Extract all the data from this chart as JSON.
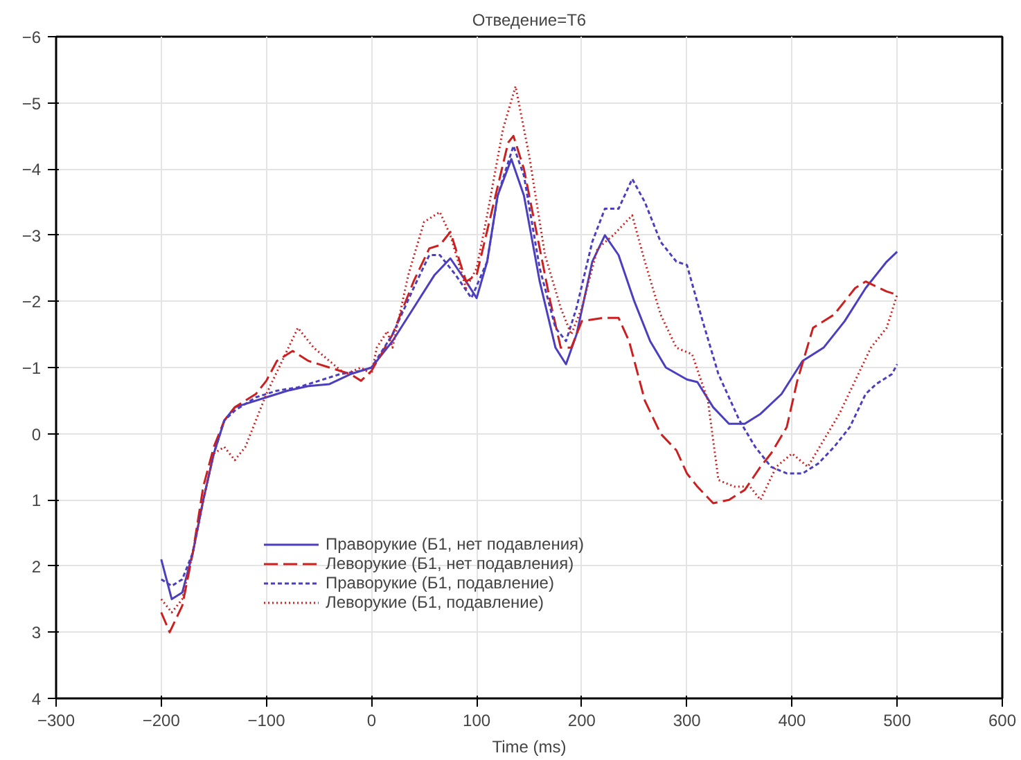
{
  "chart_data": {
    "type": "line",
    "title": "Отведение=T6",
    "xlabel": "Time (ms)",
    "xlim": [
      -300,
      600
    ],
    "xticks": [
      -300,
      -200,
      -100,
      0,
      100,
      200,
      300,
      400,
      500,
      600
    ],
    "ylim": [
      4,
      -6
    ],
    "yticks": [
      -6,
      -5,
      -4,
      -3,
      -2,
      -1,
      0,
      1,
      2,
      3,
      4
    ],
    "grid": true,
    "legend": "bottom left",
    "marker": "none",
    "series": [
      {
        "name": "Праворукие (Б1, нет подавления)",
        "color": "#4b3fbf",
        "line_style": "solid",
        "x": [
          -200,
          -190,
          -180,
          -170,
          -160,
          -150,
          -140,
          -130,
          -120,
          -100,
          -80,
          -60,
          -40,
          -20,
          0,
          20,
          40,
          60,
          75,
          90,
          100,
          110,
          120,
          133,
          145,
          160,
          175,
          185,
          195,
          210,
          222,
          235,
          250,
          265,
          280,
          300,
          310,
          325,
          340,
          355,
          370,
          390,
          410,
          430,
          450,
          470,
          490,
          500
        ],
        "values": [
          1.9,
          2.5,
          2.4,
          1.8,
          1.0,
          0.3,
          -0.2,
          -0.4,
          -0.45,
          -0.55,
          -0.65,
          -0.72,
          -0.75,
          -0.9,
          -1.0,
          -1.4,
          -1.9,
          -2.4,
          -2.65,
          -2.3,
          -2.05,
          -2.6,
          -3.6,
          -4.15,
          -3.6,
          -2.3,
          -1.3,
          -1.05,
          -1.5,
          -2.6,
          -3.0,
          -2.7,
          -2.0,
          -1.4,
          -1.0,
          -0.82,
          -0.78,
          -0.4,
          -0.15,
          -0.15,
          -0.3,
          -0.6,
          -1.1,
          -1.3,
          -1.7,
          -2.2,
          -2.6,
          -2.75
        ]
      },
      {
        "name": "Леворукие (Б1, нет подавления)",
        "color": "#cc2020",
        "line_style": "dashed",
        "x": [
          -200,
          -192,
          -180,
          -170,
          -160,
          -150,
          -140,
          -130,
          -120,
          -110,
          -100,
          -90,
          -75,
          -60,
          -40,
          -20,
          -10,
          0,
          20,
          40,
          55,
          65,
          75,
          90,
          100,
          115,
          130,
          135,
          145,
          160,
          170,
          180,
          190,
          200,
          220,
          235,
          245,
          260,
          275,
          290,
          300,
          310,
          325,
          340,
          355,
          370,
          380,
          395,
          405,
          420,
          440,
          460,
          470,
          490,
          500
        ],
        "values": [
          2.7,
          3.0,
          2.6,
          1.8,
          0.8,
          0.2,
          -0.2,
          -0.4,
          -0.5,
          -0.6,
          -0.8,
          -1.1,
          -1.25,
          -1.1,
          -1.0,
          -0.9,
          -0.8,
          -0.95,
          -1.5,
          -2.3,
          -2.8,
          -2.85,
          -3.05,
          -2.3,
          -2.4,
          -3.4,
          -4.4,
          -4.5,
          -4.0,
          -2.8,
          -2.0,
          -1.3,
          -1.3,
          -1.7,
          -1.75,
          -1.75,
          -1.4,
          -0.5,
          0.0,
          0.25,
          0.6,
          0.8,
          1.05,
          1.0,
          0.85,
          0.5,
          0.3,
          -0.1,
          -0.8,
          -1.6,
          -1.8,
          -2.2,
          -2.3,
          -2.15,
          -2.1
        ]
      },
      {
        "name": "Праворукие (Б1, подавление)",
        "color": "#4b3fbf",
        "line_style": "dashed_short",
        "x": [
          -200,
          -190,
          -180,
          -170,
          -160,
          -150,
          -140,
          -130,
          -110,
          -90,
          -70,
          -50,
          -30,
          -10,
          0,
          20,
          40,
          55,
          65,
          80,
          95,
          110,
          120,
          135,
          145,
          160,
          175,
          185,
          195,
          210,
          222,
          235,
          248,
          260,
          275,
          290,
          300,
          315,
          330,
          350,
          365,
          380,
          395,
          410,
          425,
          440,
          455,
          470,
          480,
          495,
          500
        ],
        "values": [
          2.2,
          2.3,
          2.2,
          1.8,
          1.0,
          0.3,
          -0.2,
          -0.35,
          -0.55,
          -0.65,
          -0.7,
          -0.8,
          -0.9,
          -0.95,
          -1.0,
          -1.5,
          -2.2,
          -2.7,
          -2.7,
          -2.4,
          -2.05,
          -2.6,
          -3.6,
          -4.35,
          -3.9,
          -2.5,
          -1.6,
          -1.4,
          -1.9,
          -2.9,
          -3.4,
          -3.4,
          -3.85,
          -3.5,
          -2.9,
          -2.6,
          -2.55,
          -1.7,
          -0.9,
          -0.2,
          0.2,
          0.5,
          0.6,
          0.6,
          0.45,
          0.2,
          -0.1,
          -0.6,
          -0.75,
          -0.9,
          -1.05
        ]
      },
      {
        "name": "Леворукие (Б1, подавление)",
        "color": "#cc2020",
        "line_style": "dotted",
        "x": [
          -200,
          -190,
          -180,
          -170,
          -160,
          -150,
          -140,
          -130,
          -120,
          -110,
          -100,
          -85,
          -70,
          -55,
          -40,
          -25,
          -10,
          0,
          5,
          15,
          20,
          35,
          50,
          65,
          75,
          90,
          100,
          110,
          125,
          137,
          150,
          165,
          180,
          190,
          200,
          215,
          230,
          248,
          260,
          275,
          290,
          305,
          320,
          330,
          345,
          360,
          370,
          385,
          400,
          415,
          430,
          445,
          460,
          475,
          490,
          500
        ],
        "values": [
          2.5,
          2.7,
          2.5,
          1.8,
          1.0,
          0.3,
          0.2,
          0.4,
          0.2,
          -0.2,
          -0.6,
          -1.1,
          -1.6,
          -1.3,
          -1.1,
          -0.9,
          -1.0,
          -0.9,
          -1.3,
          -1.55,
          -1.3,
          -2.4,
          -3.2,
          -3.35,
          -3.0,
          -2.2,
          -2.5,
          -3.3,
          -4.6,
          -5.25,
          -4.2,
          -2.7,
          -1.9,
          -1.5,
          -1.9,
          -2.8,
          -3.0,
          -3.3,
          -2.6,
          -1.8,
          -1.3,
          -1.2,
          -0.5,
          0.7,
          0.8,
          0.8,
          1.0,
          0.5,
          0.3,
          0.5,
          0.1,
          -0.3,
          -0.8,
          -1.3,
          -1.6,
          -2.1
        ]
      }
    ]
  }
}
